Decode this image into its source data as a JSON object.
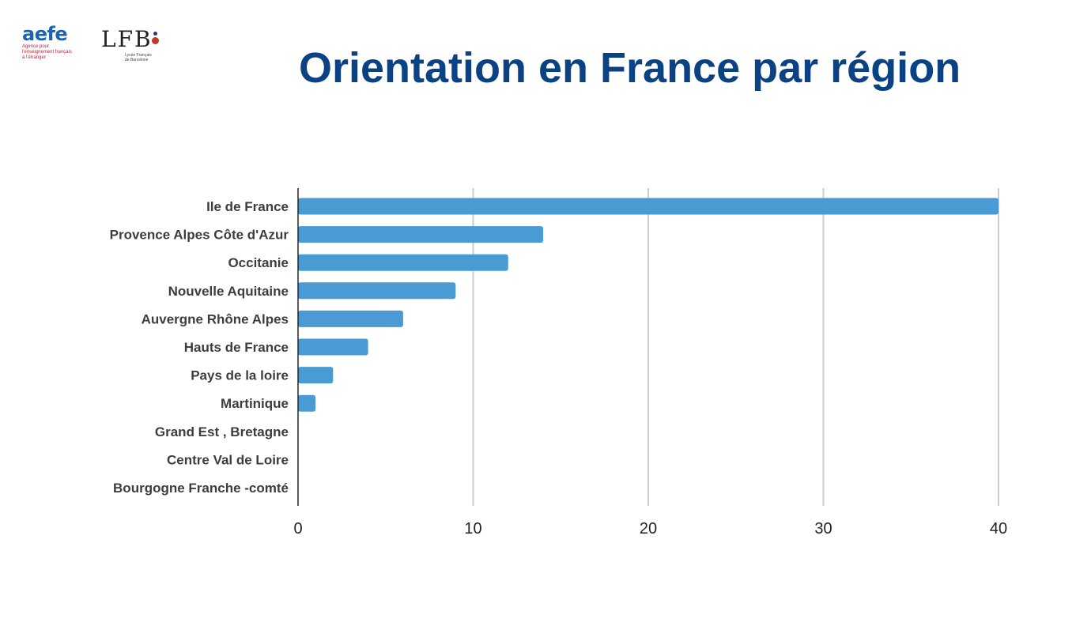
{
  "logos": {
    "aefe": {
      "word": "aefe",
      "line1": "Agence pour",
      "line2": "l'enseignement français",
      "line3": "à l'étranger"
    },
    "lfb": {
      "word": "LFB",
      "line1": "Lycée Français",
      "line2": "de Barcelone"
    }
  },
  "colors": {
    "title": "#0b4283",
    "bar": "#4a9bd4",
    "grid": "#cccccc",
    "axis": "#222222"
  },
  "chart_data": {
    "type": "bar",
    "orientation": "horizontal",
    "title": "Orientation en France par région",
    "categories": [
      "Ile de France",
      "Provence Alpes Côte d'Azur",
      "Occitanie",
      "Nouvelle Aquitaine",
      "Auvergne Rhône Alpes",
      "Hauts de France",
      "Pays de la loire",
      "Martinique",
      "Grand Est , Bretagne",
      "Centre Val de Loire",
      "Bourgogne Franche -comté"
    ],
    "values": [
      40,
      14,
      12,
      9,
      6,
      4,
      2,
      1,
      0,
      0,
      0
    ],
    "xlim": [
      0,
      40
    ],
    "xticks": [
      0,
      10,
      20,
      30,
      40
    ],
    "grid": "vertical",
    "legend": "none"
  }
}
